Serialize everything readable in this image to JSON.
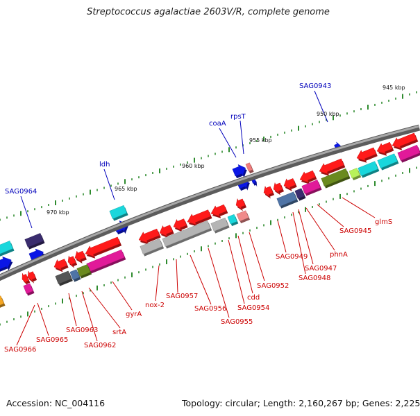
{
  "title": "Streptococcus agalactiae 2603V/R, complete genome",
  "footer": {
    "accession": "Accession: NC_004116",
    "topology": "Topology: circular; Length: 2,160,267 bp; Genes: 2,225"
  },
  "colors": {
    "forward_label": "#0000bb",
    "reverse_label": "#cc0000",
    "backbone": "#8c8c8c",
    "tick": "#2e8b2e",
    "red": "#ff1a1a",
    "blue": "#0a16e6",
    "cyan": "#19d7dc",
    "magenta": "#e11a99",
    "olive": "#6a8a1e",
    "grey": "#b4b4b4",
    "steel": "#4f74a6",
    "navy": "#3a2c6e"
  },
  "scale": {
    "markers": [
      {
        "label": "945 kbp"
      },
      {
        "label": "950 kbp"
      },
      {
        "label": "955 kbp"
      },
      {
        "label": "960 kbp"
      },
      {
        "label": "965 kbp"
      },
      {
        "label": "970 kbp"
      }
    ]
  },
  "genes": {
    "forward": [
      {
        "label": "SAG0943"
      },
      {
        "label": "rpsT"
      },
      {
        "label": "coaA"
      },
      {
        "label": "ldh"
      },
      {
        "label": "SAG0964"
      }
    ],
    "reverse": [
      {
        "label": "glmS"
      },
      {
        "label": "SAG0945"
      },
      {
        "label": "phnA"
      },
      {
        "label": "SAG0947"
      },
      {
        "label": "SAG0948"
      },
      {
        "label": "SAG0949"
      },
      {
        "label": "SAG0952"
      },
      {
        "label": "cdd"
      },
      {
        "label": "SAG0954"
      },
      {
        "label": "SAG0955"
      },
      {
        "label": "SAG0956"
      },
      {
        "label": "SAG0957"
      },
      {
        "label": "nox-2"
      },
      {
        "label": "gyrA"
      },
      {
        "label": "srtA"
      },
      {
        "label": "SAG0962"
      },
      {
        "label": "SAG0963"
      },
      {
        "label": "SAG0965"
      },
      {
        "label": "SAG0966"
      }
    ]
  }
}
